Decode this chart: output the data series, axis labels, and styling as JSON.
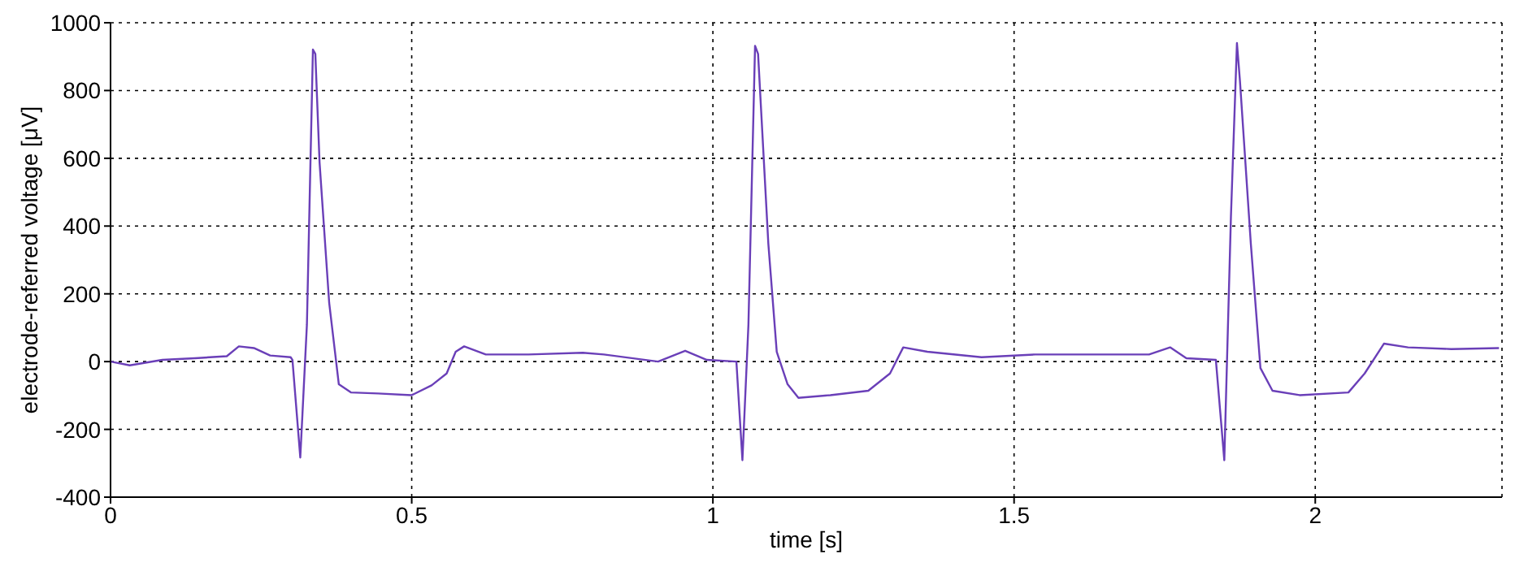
{
  "chart_data": {
    "type": "line",
    "xlabel": "time [s]",
    "ylabel": "electrode-referred voltage [μV]",
    "x": [
      0,
      0.032,
      0.086,
      0.14,
      0.193,
      0.213,
      0.238,
      0.265,
      0.299,
      0.302,
      0.315,
      0.326,
      0.336,
      0.34,
      0.347,
      0.363,
      0.379,
      0.399,
      0.444,
      0.5,
      0.533,
      0.558,
      0.573,
      0.587,
      0.623,
      0.694,
      0.784,
      0.819,
      0.909,
      0.954,
      0.99,
      1.039,
      1.049,
      1.059,
      1.07,
      1.075,
      1.092,
      1.106,
      1.124,
      1.142,
      1.195,
      1.258,
      1.294,
      1.316,
      1.356,
      1.446,
      1.535,
      1.616,
      1.724,
      1.759,
      1.786,
      1.835,
      1.849,
      1.86,
      1.87,
      1.875,
      1.893,
      1.909,
      1.929,
      1.974,
      2.055,
      2.082,
      2.114,
      2.154,
      2.226,
      2.305
    ],
    "series": [
      {
        "color": "#6a3fb8",
        "values": [
          0,
          -11,
          5,
          10,
          16,
          45,
          40,
          18,
          13,
          5,
          -283,
          109,
          921,
          908,
          588,
          173,
          -67,
          -91,
          -94,
          -99,
          -70,
          -35,
          29,
          45,
          21,
          21,
          26,
          21,
          0,
          32,
          5,
          0,
          -291,
          109,
          932,
          908,
          349,
          29,
          -67,
          -107,
          -99,
          -86,
          -35,
          42,
          29,
          13,
          21,
          21,
          21,
          42,
          10,
          5,
          -291,
          428,
          940,
          828,
          349,
          -19,
          -86,
          -99,
          -91,
          -35,
          53,
          42,
          37,
          40
        ]
      }
    ],
    "xlim": [
      0,
      2.31
    ],
    "xticks": [
      0,
      0.5,
      1,
      1.5,
      2
    ],
    "ylim": [
      -400,
      1000
    ],
    "yticks": [
      -400,
      -200,
      0,
      200,
      400,
      600,
      800,
      1000
    ],
    "grid": true,
    "legend": false,
    "marker": "none",
    "line_style": "solid"
  }
}
